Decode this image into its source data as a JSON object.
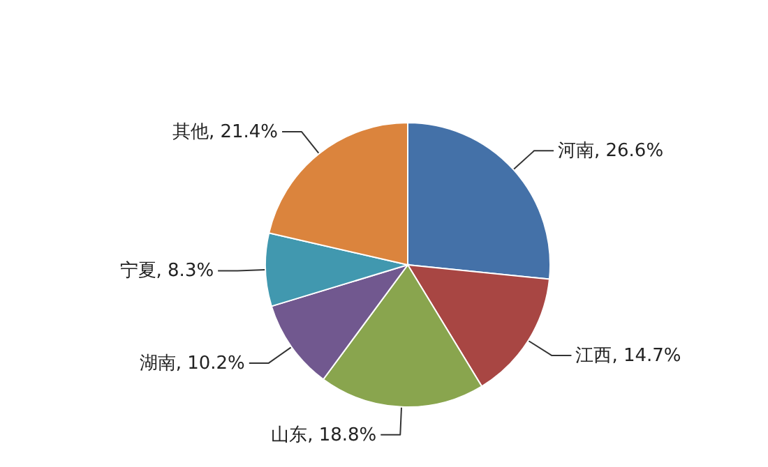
{
  "chart_data": {
    "type": "pie",
    "categories": [
      "河南",
      "江西",
      "山东",
      "湖南",
      "宁夏",
      "其他"
    ],
    "values": [
      26.6,
      14.7,
      18.8,
      10.2,
      8.3,
      21.4
    ],
    "value_labels": [
      "26.6%",
      "14.7%",
      "18.8%",
      "10.2%",
      "8.3%",
      "21.4%"
    ],
    "colors": [
      "#4471a8",
      "#a84643",
      "#89a54e",
      "#71588f",
      "#4198af",
      "#db843d"
    ]
  }
}
